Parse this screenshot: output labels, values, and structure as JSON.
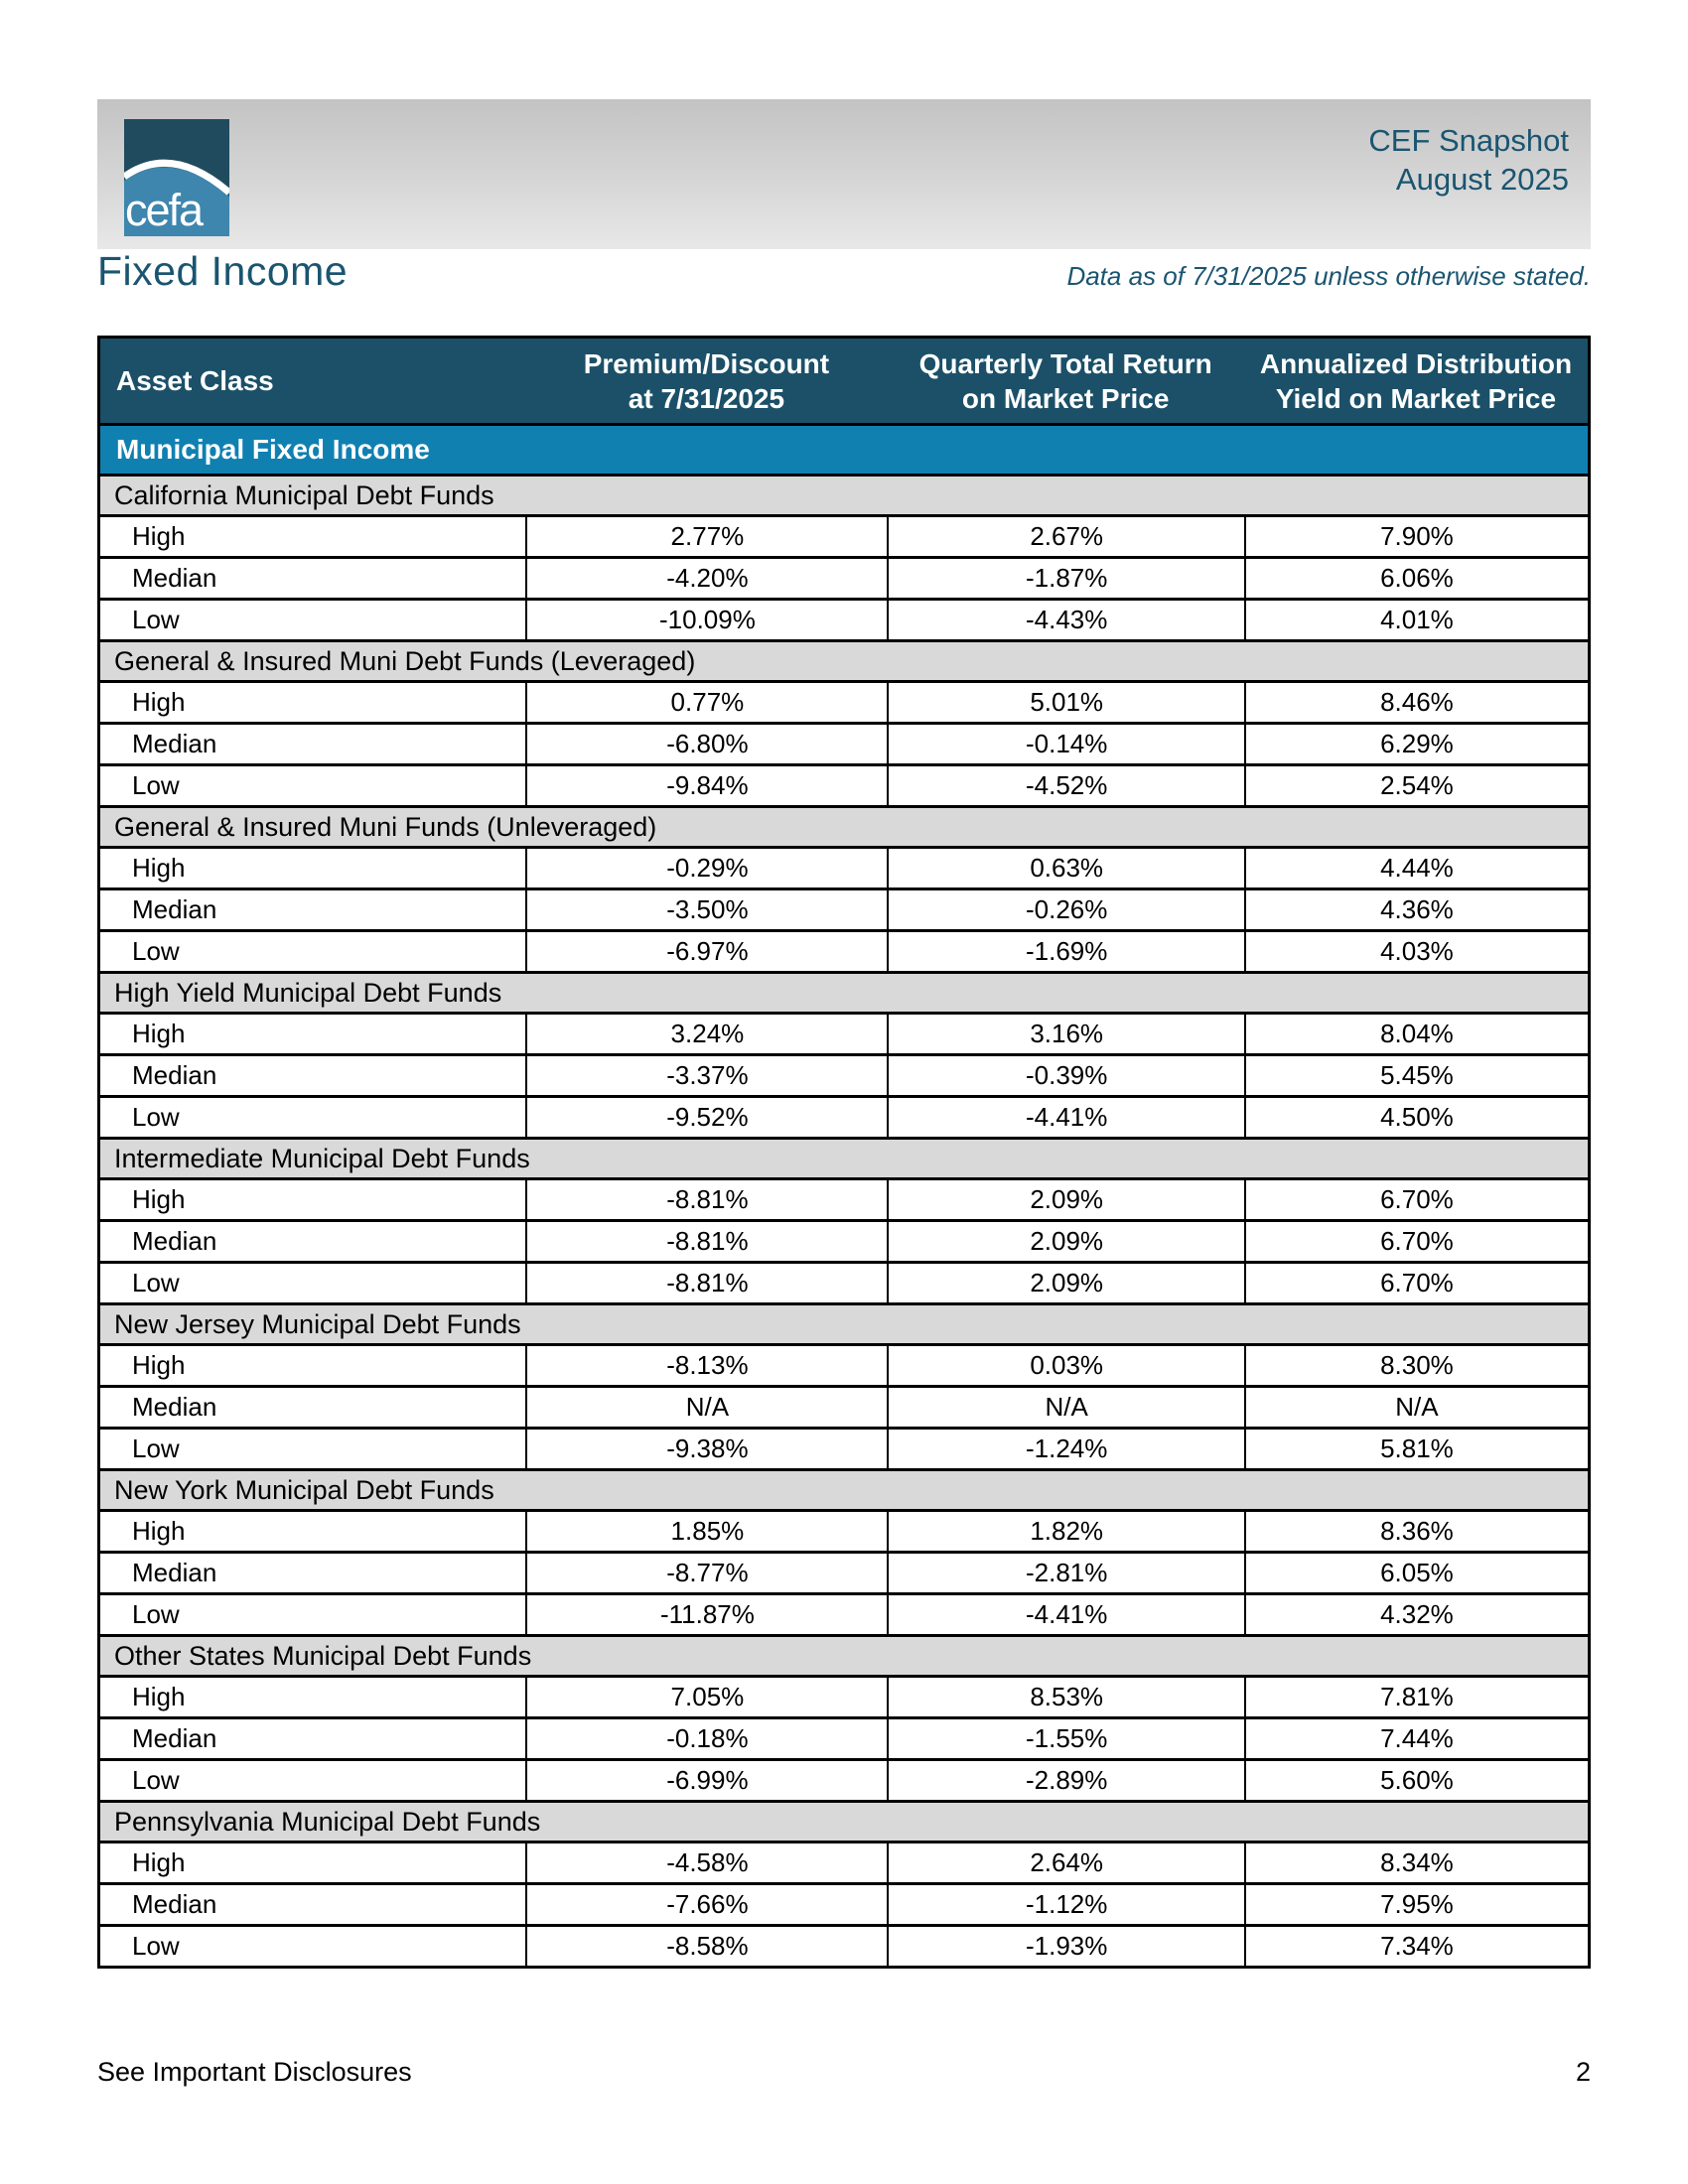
{
  "header": {
    "brand_logo_text": "cefa",
    "report_title": "CEF Snapshot",
    "report_period": "August 2025"
  },
  "title_row": {
    "page_title": "Fixed Income",
    "data_note": "Data as of 7/31/2025 unless otherwise stated."
  },
  "table": {
    "columns": [
      {
        "line1": "Asset Class",
        "line2": ""
      },
      {
        "line1": "Premium/Discount",
        "line2": "at 7/31/2025"
      },
      {
        "line1": "Quarterly Total Return",
        "line2": "on Market Price"
      },
      {
        "line1": "Annualized Distribution",
        "line2": "Yield on Market Price"
      }
    ],
    "category": "Municipal Fixed Income",
    "sections": [
      {
        "label": "California Municipal Debt Funds",
        "rows": [
          {
            "label": "High",
            "values": [
              "2.77%",
              "2.67%",
              "7.90%"
            ]
          },
          {
            "label": "Median",
            "values": [
              "-4.20%",
              "-1.87%",
              "6.06%"
            ]
          },
          {
            "label": "Low",
            "values": [
              "-10.09%",
              "-4.43%",
              "4.01%"
            ]
          }
        ]
      },
      {
        "label": "General & Insured Muni Debt Funds (Leveraged)",
        "rows": [
          {
            "label": "High",
            "values": [
              "0.77%",
              "5.01%",
              "8.46%"
            ]
          },
          {
            "label": "Median",
            "values": [
              "-6.80%",
              "-0.14%",
              "6.29%"
            ]
          },
          {
            "label": "Low",
            "values": [
              "-9.84%",
              "-4.52%",
              "2.54%"
            ]
          }
        ]
      },
      {
        "label": "General & Insured Muni Funds (Unleveraged)",
        "rows": [
          {
            "label": "High",
            "values": [
              "-0.29%",
              "0.63%",
              "4.44%"
            ]
          },
          {
            "label": "Median",
            "values": [
              "-3.50%",
              "-0.26%",
              "4.36%"
            ]
          },
          {
            "label": "Low",
            "values": [
              "-6.97%",
              "-1.69%",
              "4.03%"
            ]
          }
        ]
      },
      {
        "label": "High Yield Municipal Debt Funds",
        "rows": [
          {
            "label": "High",
            "values": [
              "3.24%",
              "3.16%",
              "8.04%"
            ]
          },
          {
            "label": "Median",
            "values": [
              "-3.37%",
              "-0.39%",
              "5.45%"
            ]
          },
          {
            "label": "Low",
            "values": [
              "-9.52%",
              "-4.41%",
              "4.50%"
            ]
          }
        ]
      },
      {
        "label": "Intermediate Municipal Debt Funds",
        "rows": [
          {
            "label": "High",
            "values": [
              "-8.81%",
              "2.09%",
              "6.70%"
            ]
          },
          {
            "label": "Median",
            "values": [
              "-8.81%",
              "2.09%",
              "6.70%"
            ]
          },
          {
            "label": "Low",
            "values": [
              "-8.81%",
              "2.09%",
              "6.70%"
            ]
          }
        ]
      },
      {
        "label": "New Jersey Municipal Debt Funds",
        "rows": [
          {
            "label": "High",
            "values": [
              "-8.13%",
              "0.03%",
              "8.30%"
            ]
          },
          {
            "label": "Median",
            "values": [
              "N/A",
              "N/A",
              "N/A"
            ]
          },
          {
            "label": "Low",
            "values": [
              "-9.38%",
              "-1.24%",
              "5.81%"
            ]
          }
        ]
      },
      {
        "label": "New York Municipal Debt Funds",
        "rows": [
          {
            "label": "High",
            "values": [
              "1.85%",
              "1.82%",
              "8.36%"
            ]
          },
          {
            "label": "Median",
            "values": [
              "-8.77%",
              "-2.81%",
              "6.05%"
            ]
          },
          {
            "label": "Low",
            "values": [
              "-11.87%",
              "-4.41%",
              "4.32%"
            ]
          }
        ]
      },
      {
        "label": "Other States Municipal Debt Funds",
        "rows": [
          {
            "label": "High",
            "values": [
              "7.05%",
              "8.53%",
              "7.81%"
            ]
          },
          {
            "label": "Median",
            "values": [
              "-0.18%",
              "-1.55%",
              "7.44%"
            ]
          },
          {
            "label": "Low",
            "values": [
              "-6.99%",
              "-2.89%",
              "5.60%"
            ]
          }
        ]
      },
      {
        "label": "Pennsylvania Municipal Debt Funds",
        "rows": [
          {
            "label": "High",
            "values": [
              "-4.58%",
              "2.64%",
              "8.34%"
            ]
          },
          {
            "label": "Median",
            "values": [
              "-7.66%",
              "-1.12%",
              "7.95%"
            ]
          },
          {
            "label": "Low",
            "values": [
              "-8.58%",
              "-1.93%",
              "7.34%"
            ]
          }
        ]
      }
    ]
  },
  "footer": {
    "disclosures": "See Important Disclosures",
    "page_number": "2"
  },
  "colors": {
    "table_header_bg": "#1b5068",
    "category_bar_bg": "#1080b1",
    "section_row_bg": "#d9d9d9",
    "title_text": "#1a5570",
    "logo_top": "#204b5e",
    "logo_bottom": "#3e86ae"
  }
}
